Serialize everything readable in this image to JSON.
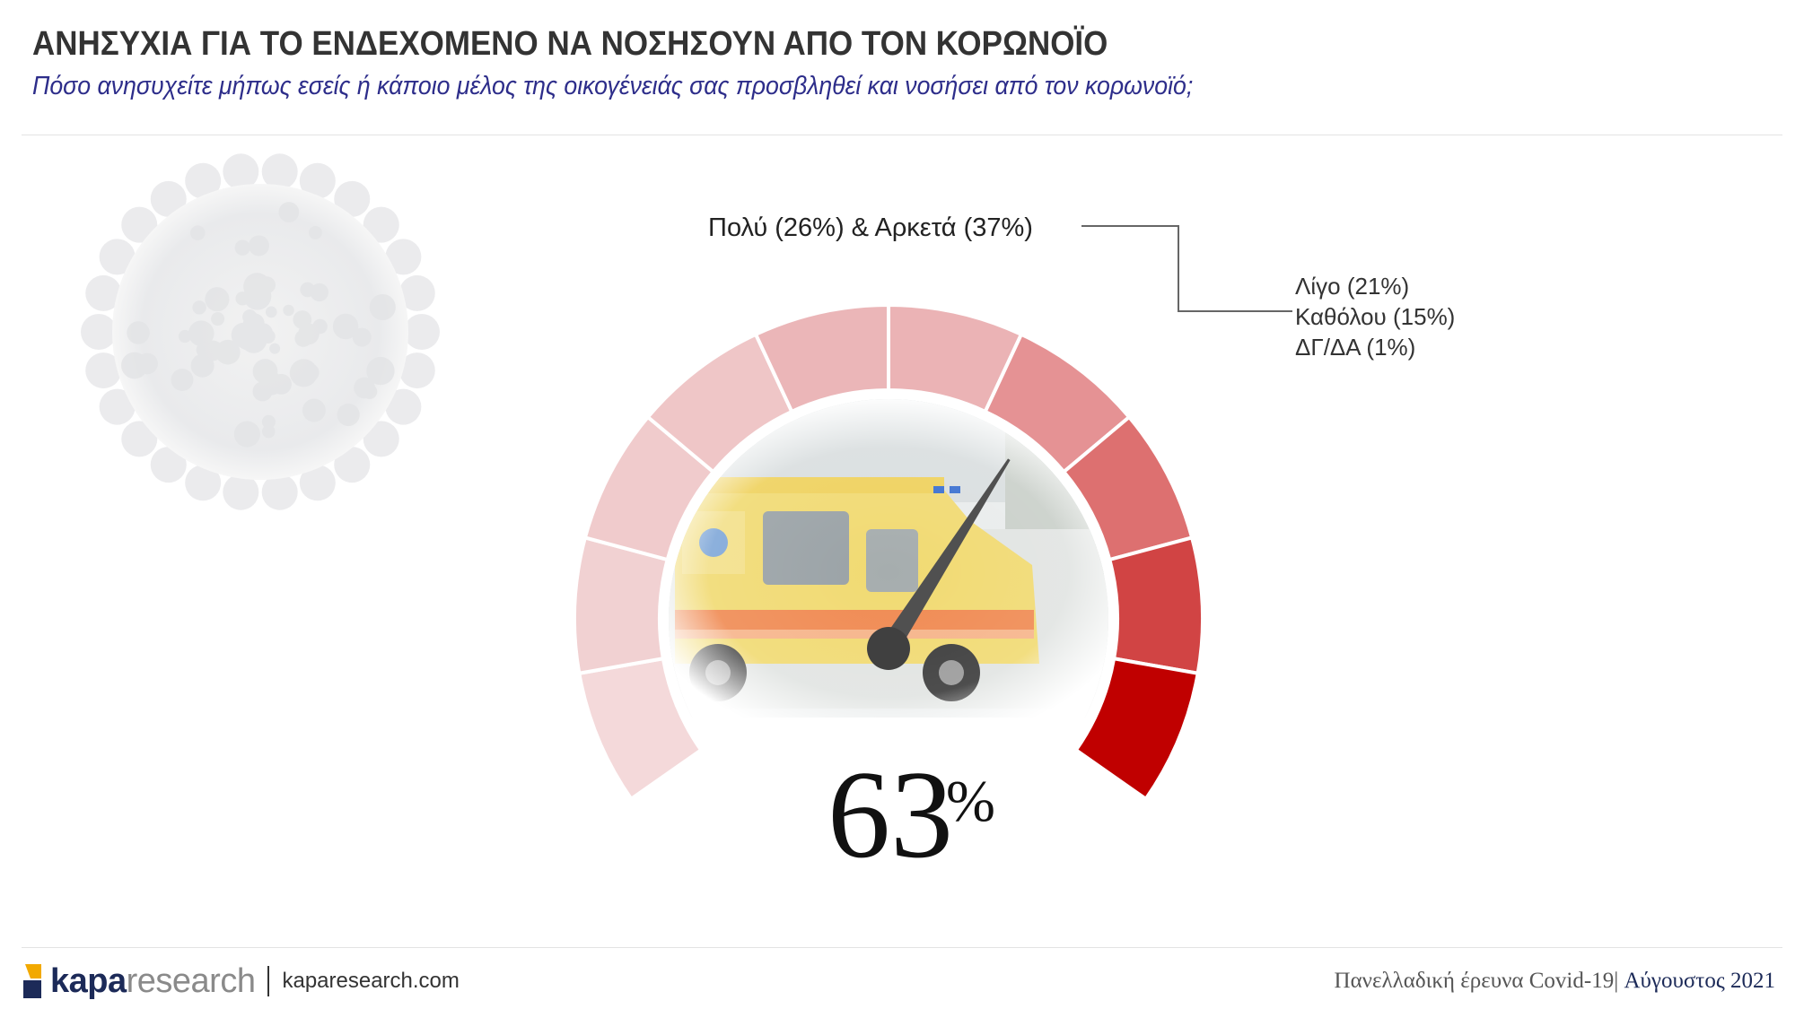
{
  "header": {
    "title": "ΑΝΗΣΥΧΙΑ ΓΙΑ ΤΟ ΕΝΔΕΧΟΜΕΝΟ ΝΑ ΝΟΣΗΣΟΥΝ ΑΠΟ ΤΟΝ ΚΟΡΩΝΟΪΟ",
    "subtitle": "Πόσο ανησυχείτε μήπως εσείς ή κάποιο μέλος της οικογένειάς σας προσβληθεί και νοσήσει από τον κορωνοϊό;"
  },
  "chart_data": {
    "type": "gauge",
    "value": 63,
    "value_unit": "%",
    "scale": [
      0,
      100
    ],
    "segments": 10,
    "needle_value": 63,
    "highlight_label": "Πολύ (26%) & Αρκετά (37%)",
    "other_labels": [
      "Λίγο (21%)",
      "Καθόλου (15%)",
      "ΔΓ/ΔΑ (1%)"
    ],
    "categories": [
      "Πολύ",
      "Αρκετά",
      "Λίγο",
      "Καθόλου",
      "ΔΓ/ΔΑ"
    ],
    "values": [
      26,
      37,
      21,
      15,
      1
    ],
    "segment_colors": [
      "#f4d9da",
      "#f1d1d2",
      "#f0cbcc",
      "#efc6c7",
      "#ebb6b8",
      "#ebb3b5",
      "#e59294",
      "#dd7070",
      "#d14444",
      "#c00000"
    ]
  },
  "footer": {
    "brand_bold": "kapa",
    "brand_rest": "research",
    "website": "kaparesearch.com",
    "survey": "Πανελλαδική έρευνα Covid-19|",
    "date": " Αύγουστος 2021"
  },
  "icons": {
    "background_left": "coronavirus-icon",
    "gauge_center": "ambulance-photo",
    "logo": "kapa-logo-icon"
  }
}
